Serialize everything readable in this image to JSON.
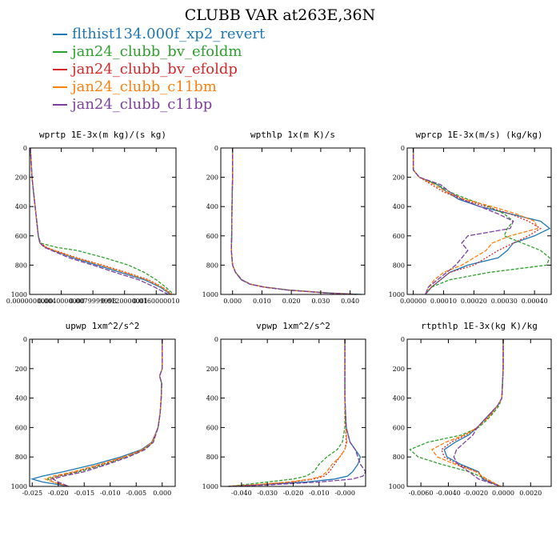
{
  "figure_title": "CLUBB VAR at263E,36N",
  "legend": [
    {
      "name": "flthist134.000f_xp2_revert",
      "color": "#1f77b4"
    },
    {
      "name": "jan24_clubb_bv_efoldm",
      "color": "#2ca02c"
    },
    {
      "name": "jan24_clubb_bv_efoldp",
      "color": "#d62728"
    },
    {
      "name": "jan24_clubb_c11bm",
      "color": "#ff7f0e"
    },
    {
      "name": "jan24_clubb_c11bp",
      "color": "#7b3fa0"
    }
  ],
  "chart_data": [
    {
      "type": "line",
      "title": "wprtp 1E-3x(m kg)/(s kg)",
      "yticks": [
        "0",
        "200",
        "400",
        "600",
        "800",
        "1000"
      ],
      "xticks": [
        "0.0000000000",
        "0.0040000000",
        "0.0079999998",
        "0.0120000001",
        "0.0160000010"
      ],
      "xlim": [
        0,
        0.0185
      ],
      "ylim": [
        1000,
        0
      ],
      "y": [
        0,
        100,
        200,
        300,
        400,
        500,
        600,
        650,
        680,
        700,
        750,
        800,
        850,
        900,
        950,
        1000
      ],
      "series": [
        {
          "name": "flthist134.000f_xp2_revert",
          "values": [
            0.0001,
            0.0002,
            0.0003,
            0.0005,
            0.0007,
            0.0009,
            0.0011,
            0.0013,
            0.002,
            0.003,
            0.0055,
            0.0085,
            0.0115,
            0.0145,
            0.0165,
            0.0178
          ]
        },
        {
          "name": "jan24_clubb_bv_efoldm",
          "values": [
            0.0001,
            0.0002,
            0.0003,
            0.0005,
            0.0007,
            0.0009,
            0.0011,
            0.0014,
            0.0035,
            0.006,
            0.0095,
            0.0125,
            0.0145,
            0.016,
            0.0172,
            0.0182
          ]
        },
        {
          "name": "jan24_clubb_bv_efoldp",
          "values": [
            0.0001,
            0.0002,
            0.0003,
            0.0005,
            0.0007,
            0.0009,
            0.0011,
            0.0013,
            0.0022,
            0.0032,
            0.006,
            0.0092,
            0.0122,
            0.015,
            0.0168,
            0.018
          ]
        },
        {
          "name": "jan24_clubb_c11bm",
          "values": [
            0.0001,
            0.0002,
            0.0003,
            0.0005,
            0.0007,
            0.0009,
            0.0011,
            0.0013,
            0.0021,
            0.0031,
            0.0058,
            0.009,
            0.012,
            0.0148,
            0.0167,
            0.0179
          ]
        },
        {
          "name": "jan24_clubb_c11bp",
          "values": [
            0.0001,
            0.0002,
            0.0003,
            0.0005,
            0.0007,
            0.0009,
            0.0011,
            0.0013,
            0.0019,
            0.0028,
            0.005,
            0.008,
            0.0108,
            0.0138,
            0.0158,
            0.0175
          ]
        }
      ]
    },
    {
      "type": "line",
      "title": "wpthlp 1x(m K)/s",
      "yticks": [
        "0",
        "200",
        "400",
        "600",
        "800",
        "1000"
      ],
      "xticks": [
        "0.000",
        "0.010",
        "0.020",
        "0.030",
        "0.040"
      ],
      "xlim": [
        -0.004,
        0.045
      ],
      "ylim": [
        1000,
        0
      ],
      "y": [
        0,
        200,
        400,
        600,
        700,
        800,
        850,
        900,
        930,
        950,
        970,
        990,
        1000
      ],
      "series": [
        {
          "name": "flthist134.000f_xp2_revert",
          "values": [
            0.0,
            0.0,
            -0.0002,
            -0.0003,
            -0.0004,
            0.0,
            0.001,
            0.003,
            0.006,
            0.011,
            0.019,
            0.033,
            0.044
          ]
        },
        {
          "name": "jan24_clubb_bv_efoldm",
          "values": [
            0.0,
            0.0,
            -0.0002,
            -0.0003,
            -0.0004,
            0.0,
            0.0011,
            0.0032,
            0.0062,
            0.011,
            0.019,
            0.032,
            0.042
          ]
        },
        {
          "name": "jan24_clubb_bv_efoldp",
          "values": [
            0.0,
            0.0,
            -0.0002,
            -0.0003,
            -0.0004,
            0.0,
            0.001,
            0.0031,
            0.006,
            0.0108,
            0.0188,
            0.032,
            0.042
          ]
        },
        {
          "name": "jan24_clubb_c11bm",
          "values": [
            0.0,
            0.0,
            -0.0002,
            -0.0003,
            -0.0004,
            0.0,
            0.001,
            0.003,
            0.006,
            0.0108,
            0.0188,
            0.032,
            0.042
          ]
        },
        {
          "name": "jan24_clubb_c11bp",
          "values": [
            0.0,
            0.0,
            -0.0002,
            -0.0003,
            -0.0004,
            0.0,
            0.001,
            0.003,
            0.0059,
            0.0106,
            0.0185,
            0.0315,
            0.0415
          ]
        }
      ]
    },
    {
      "type": "line",
      "title": "wprcp 1E-3x(m/s) (kg/kg)",
      "yticks": [
        "0",
        "200",
        "400",
        "600",
        "800",
        "1000"
      ],
      "xticks": [
        "0.00000",
        "0.00010",
        "0.00020",
        "0.00030",
        "0.00040"
      ],
      "xlim": [
        -2e-05,
        0.000455
      ],
      "ylim": [
        1000,
        0
      ],
      "y": [
        0,
        150,
        200,
        250,
        300,
        350,
        400,
        450,
        500,
        550,
        600,
        650,
        700,
        750,
        800,
        850,
        900,
        950,
        1000
      ],
      "series": [
        {
          "name": "flthist134.000f_xp2_revert",
          "values": [
            0.0,
            0.0,
            2e-05,
            8e-05,
            0.00011,
            0.00015,
            0.00022,
            0.00032,
            0.00042,
            0.00045,
            0.0004,
            0.00033,
            0.00031,
            0.00028,
            0.00018,
            0.00012,
            9e-05,
            6e-05,
            4e-05
          ]
        },
        {
          "name": "jan24_clubb_bv_efoldm",
          "values": [
            0.0,
            0.0,
            2e-05,
            8e-05,
            0.00012,
            0.00018,
            0.00025,
            0.0003,
            0.00033,
            0.00031,
            0.0003,
            0.00036,
            0.00042,
            0.00045,
            0.00044,
            0.00025,
            0.00012,
            6e-05,
            4e-05
          ]
        },
        {
          "name": "jan24_clubb_bv_efoldp",
          "values": [
            0.0,
            0.0,
            2e-05,
            6e-05,
            0.0001,
            0.00016,
            0.00024,
            0.00032,
            0.00038,
            0.00042,
            0.00038,
            0.00033,
            0.00028,
            0.00024,
            0.0002,
            0.00012,
            9e-05,
            6e-05,
            4e-05
          ]
        },
        {
          "name": "jan24_clubb_c11bm",
          "values": [
            0.0,
            0.0,
            2e-05,
            7e-05,
            0.00011,
            0.00017,
            0.00026,
            0.00034,
            0.0004,
            0.00041,
            0.00032,
            0.00026,
            0.00024,
            0.0002,
            0.00016,
            0.0001,
            7e-05,
            5e-05,
            4e-05
          ]
        },
        {
          "name": "jan24_clubb_c11bp",
          "values": [
            0.0,
            0.0,
            2e-05,
            9e-05,
            0.00012,
            0.00016,
            0.00022,
            0.00028,
            0.00033,
            0.00032,
            0.00018,
            0.00016,
            0.00018,
            0.00016,
            0.00014,
            0.00011,
            8e-05,
            5e-05,
            4e-05
          ]
        }
      ]
    },
    {
      "type": "line",
      "title": "upwp 1xm^2/s^2",
      "yticks": [
        "0",
        "200",
        "400",
        "600",
        "800",
        "1000"
      ],
      "xticks": [
        "-0.025",
        "-0.020",
        "-0.015",
        "-0.010",
        "-0.005",
        "0.000"
      ],
      "xlim": [
        -0.0255,
        0.0025
      ],
      "ylim": [
        1000,
        0
      ],
      "y": [
        0,
        200,
        250,
        300,
        400,
        500,
        600,
        700,
        750,
        800,
        850,
        900,
        930,
        950,
        970,
        1000
      ],
      "series": [
        {
          "name": "flthist134.000f_xp2_revert",
          "values": [
            0.0,
            0.0,
            -0.0005,
            -0.0001,
            -0.0002,
            -0.0004,
            -0.0008,
            -0.002,
            -0.004,
            -0.008,
            -0.013,
            -0.019,
            -0.023,
            -0.025,
            -0.023,
            -0.018
          ]
        },
        {
          "name": "jan24_clubb_bv_efoldm",
          "values": [
            0.0,
            0.0,
            -0.0005,
            -0.0001,
            -0.0002,
            -0.0004,
            -0.0008,
            -0.0018,
            -0.0035,
            -0.007,
            -0.011,
            -0.016,
            -0.02,
            -0.022,
            -0.021,
            -0.018
          ]
        },
        {
          "name": "jan24_clubb_bv_efoldp",
          "values": [
            0.0,
            0.0,
            -0.0005,
            -0.0001,
            -0.0002,
            -0.0004,
            -0.0008,
            -0.0019,
            -0.0037,
            -0.0072,
            -0.0115,
            -0.0165,
            -0.02,
            -0.0215,
            -0.021,
            -0.018
          ]
        },
        {
          "name": "jan24_clubb_c11bm",
          "values": [
            0.0,
            0.0,
            -0.0005,
            -0.0001,
            -0.0002,
            -0.0004,
            -0.0008,
            -0.0019,
            -0.0037,
            -0.0073,
            -0.012,
            -0.017,
            -0.021,
            -0.0225,
            -0.021,
            -0.018
          ]
        },
        {
          "name": "jan24_clubb_c11bp",
          "values": [
            0.0,
            0.0,
            -0.0005,
            -0.0001,
            -0.0002,
            -0.0004,
            -0.0008,
            -0.0017,
            -0.0033,
            -0.0065,
            -0.0105,
            -0.015,
            -0.019,
            -0.021,
            -0.02,
            -0.018
          ]
        }
      ]
    },
    {
      "type": "line",
      "title": "vpwp 1xm^2/s^2",
      "yticks": [
        "0",
        "200",
        "400",
        "600",
        "800",
        "1000"
      ],
      "xticks": [
        "-0.040",
        "-0.030",
        "-0.020",
        "-0.010",
        "-0.000"
      ],
      "xlim": [
        -0.048,
        0.008
      ],
      "ylim": [
        1000,
        0
      ],
      "y": [
        0,
        200,
        400,
        600,
        700,
        750,
        800,
        850,
        900,
        930,
        950,
        970,
        990,
        1000
      ],
      "series": [
        {
          "name": "flthist134.000f_xp2_revert",
          "values": [
            0.0,
            0.0,
            0.0,
            0.0005,
            0.002,
            0.004,
            0.006,
            0.005,
            0.003,
            0.001,
            -0.004,
            -0.015,
            -0.035,
            -0.045
          ]
        },
        {
          "name": "jan24_clubb_bv_efoldm",
          "values": [
            0.0,
            0.0,
            0.0,
            0.0,
            -0.001,
            -0.003,
            -0.007,
            -0.01,
            -0.012,
            -0.015,
            -0.02,
            -0.03,
            -0.04,
            -0.045
          ]
        },
        {
          "name": "jan24_clubb_bv_efoldp",
          "values": [
            0.0,
            0.0,
            0.0,
            0.0003,
            0.0005,
            0.0,
            -0.002,
            -0.004,
            -0.006,
            -0.008,
            -0.012,
            -0.02,
            -0.035,
            -0.045
          ]
        },
        {
          "name": "jan24_clubb_c11bm",
          "values": [
            0.0,
            0.0,
            0.0,
            0.0003,
            0.0008,
            0.0,
            -0.002,
            -0.005,
            -0.007,
            -0.009,
            -0.013,
            -0.022,
            -0.036,
            -0.045
          ]
        },
        {
          "name": "jan24_clubb_c11bp",
          "values": [
            0.0,
            0.0,
            0.0,
            0.0005,
            0.002,
            0.004,
            0.005,
            0.006,
            0.008,
            0.007,
            0.003,
            -0.01,
            -0.03,
            -0.045
          ]
        }
      ]
    },
    {
      "type": "line",
      "title": "rtpthlp 1E-3x(kg K)/kg",
      "yticks": [
        "0",
        "200",
        "400",
        "600",
        "800",
        "1000"
      ],
      "xticks": [
        "-0.0060",
        "-0.0040",
        "-0.0020",
        "0.0000",
        "0.0020"
      ],
      "xlim": [
        -0.007,
        0.0035
      ],
      "ylim": [
        1000,
        0
      ],
      "y": [
        0,
        200,
        400,
        450,
        500,
        550,
        600,
        650,
        700,
        750,
        800,
        850,
        900,
        950,
        1000
      ],
      "series": [
        {
          "name": "flthist134.000f_xp2_revert",
          "values": [
            0.0,
            0.0,
            -0.0001,
            -0.0004,
            -0.0009,
            -0.0014,
            -0.0019,
            -0.0025,
            -0.0035,
            -0.0043,
            -0.0041,
            -0.0031,
            -0.0018,
            -0.0015,
            -0.0002
          ]
        },
        {
          "name": "jan24_clubb_bv_efoldm",
          "values": [
            0.0,
            0.0,
            -0.0001,
            -0.0003,
            -0.0007,
            -0.0012,
            -0.0018,
            -0.003,
            -0.0055,
            -0.0068,
            -0.0062,
            -0.0045,
            -0.0025,
            -0.0012,
            -0.0002
          ]
        },
        {
          "name": "jan24_clubb_bv_efoldp",
          "values": [
            0.0,
            0.0,
            -0.0001,
            -0.0004,
            -0.0008,
            -0.0013,
            -0.0019,
            -0.0027,
            -0.0038,
            -0.0045,
            -0.0043,
            -0.0033,
            -0.0019,
            -0.0014,
            -0.0002
          ]
        },
        {
          "name": "jan24_clubb_c11bm",
          "values": [
            0.0,
            0.0,
            -0.0001,
            -0.0004,
            -0.0008,
            -0.0013,
            -0.0019,
            -0.0028,
            -0.0042,
            -0.0052,
            -0.0048,
            -0.0035,
            -0.002,
            -0.0012,
            -0.0002
          ]
        },
        {
          "name": "jan24_clubb_c11bp",
          "values": [
            0.0,
            0.0,
            -0.0001,
            -0.0004,
            -0.0009,
            -0.0014,
            -0.0019,
            -0.0022,
            -0.0028,
            -0.0034,
            -0.0036,
            -0.0033,
            -0.0025,
            -0.0018,
            -0.0002
          ]
        }
      ]
    }
  ]
}
